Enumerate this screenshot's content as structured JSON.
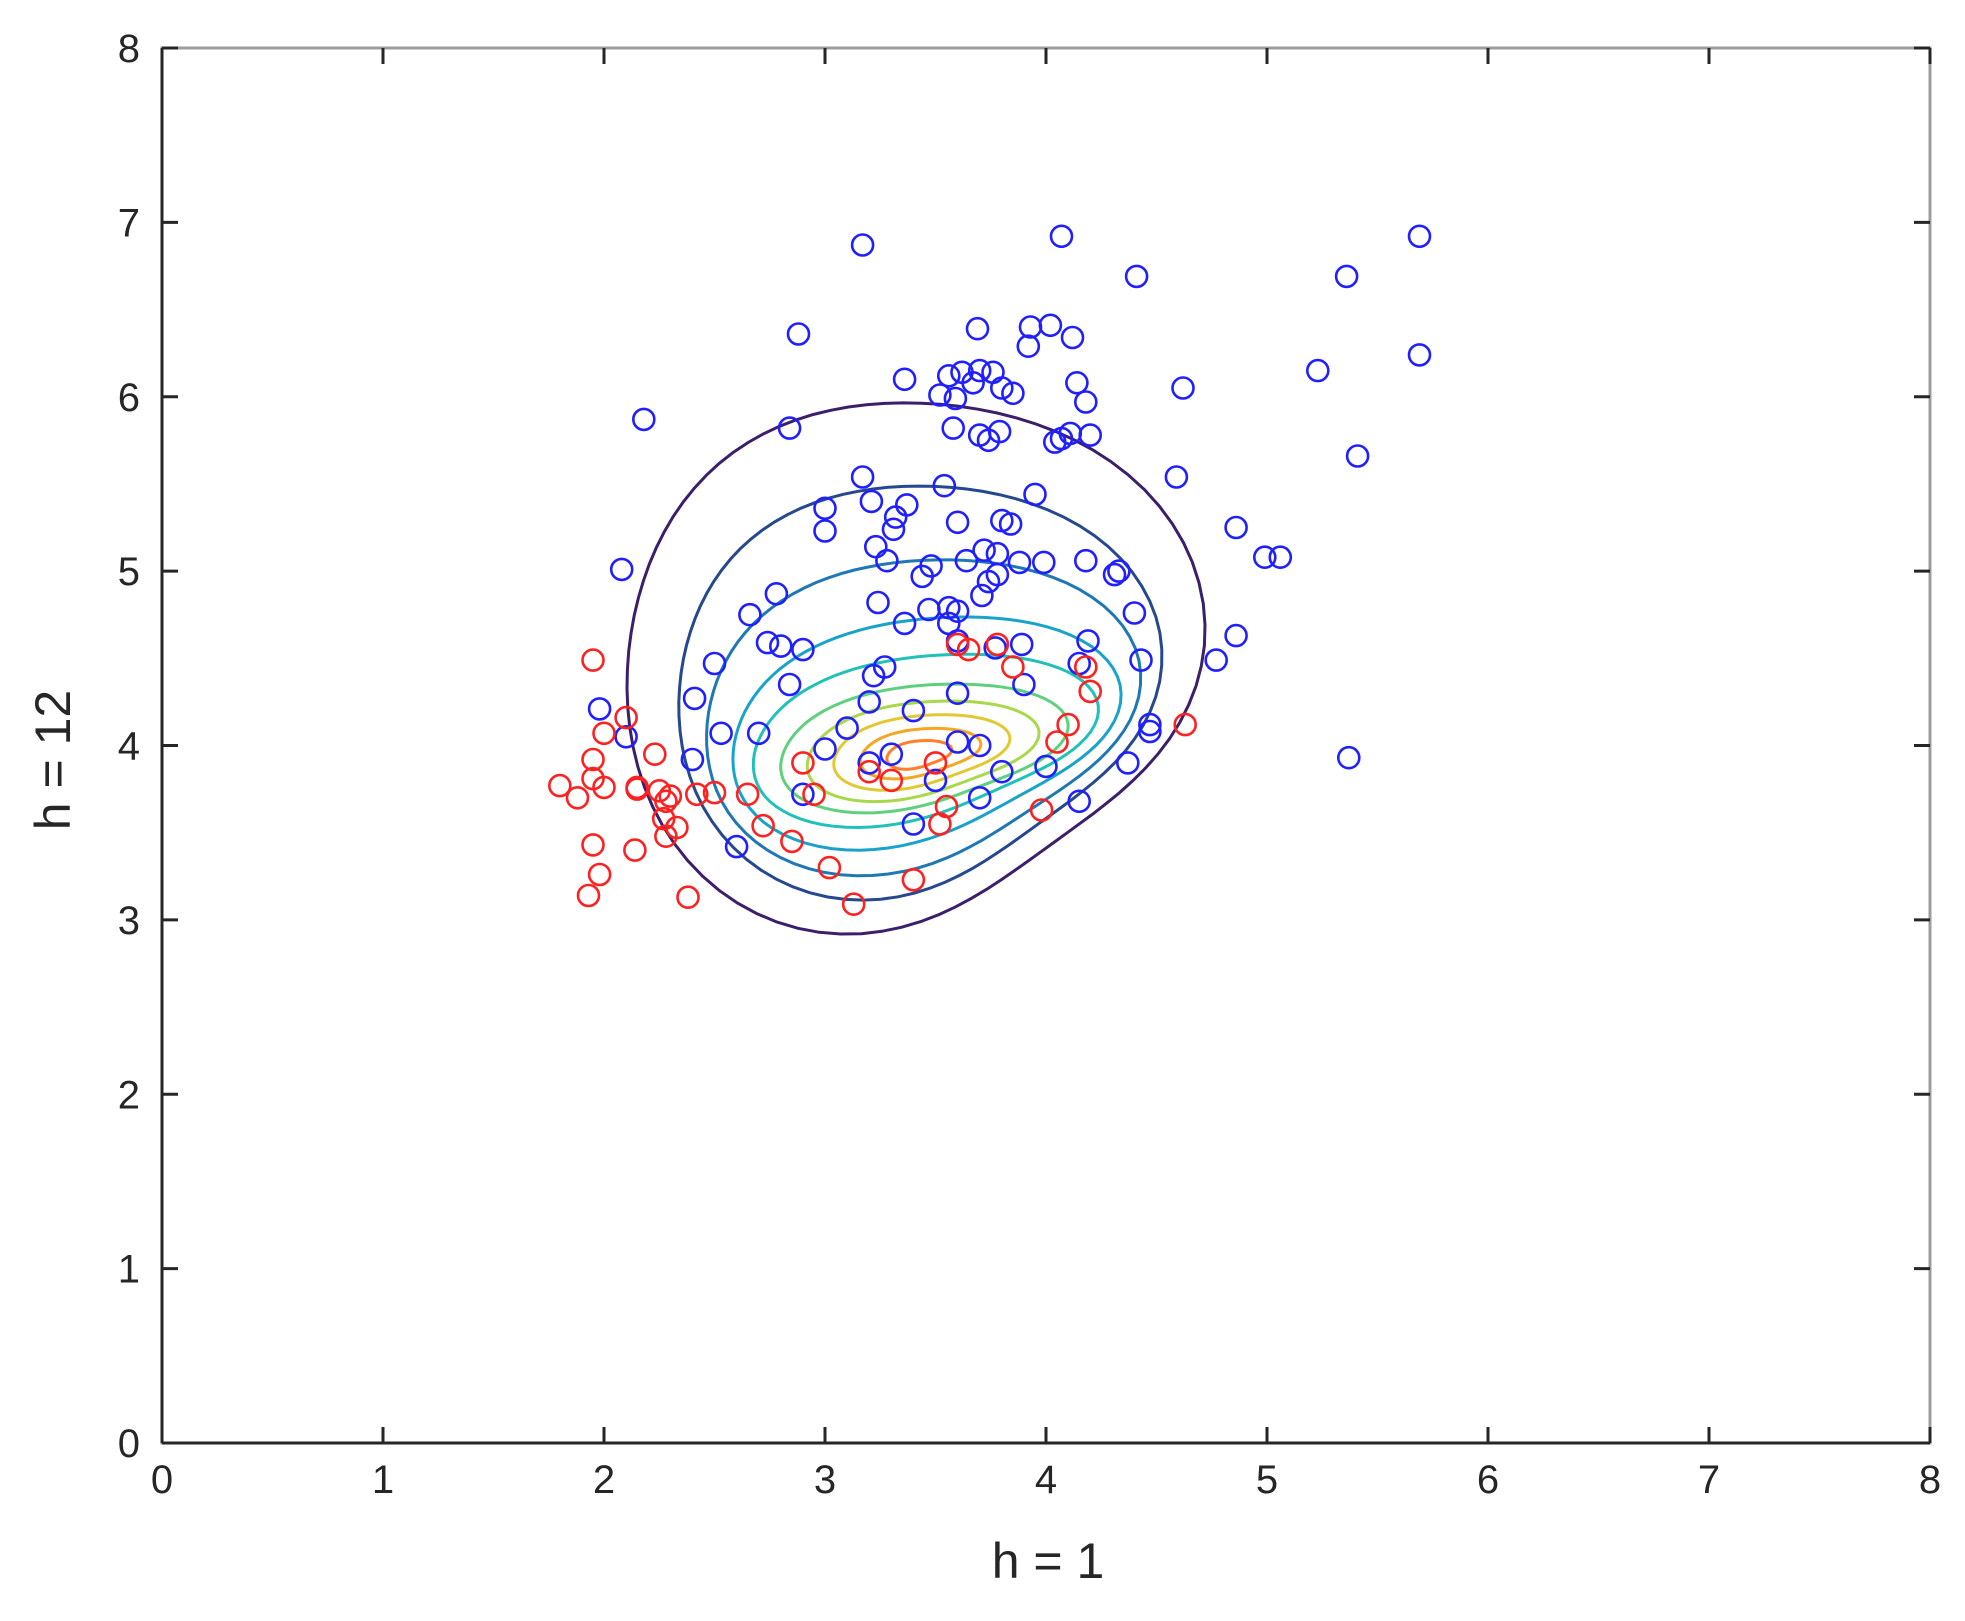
{
  "chart_data": {
    "type": "scatter",
    "xlabel": "h = 1",
    "ylabel": "h = 12",
    "xlim": [
      0,
      8
    ],
    "ylim": [
      0,
      8
    ],
    "xticks": [
      "0",
      "1",
      "2",
      "3",
      "4",
      "5",
      "6",
      "7",
      "8"
    ],
    "yticks": [
      "0",
      "1",
      "2",
      "3",
      "4",
      "5",
      "6",
      "7",
      "8"
    ],
    "grid": false,
    "colors": {
      "group_a": "#1f1fff",
      "group_b": "#ff2020",
      "axes": "#262626",
      "frame": "#9c9c9c"
    },
    "contour_colormap": [
      "#3b1f6b",
      "#25488e",
      "#1f78b4",
      "#1aa3c8",
      "#21c1b9",
      "#5fd07e",
      "#a9d84a",
      "#e2c832",
      "#f5a623",
      "#ff7f2a"
    ],
    "contour_center": [
      3.4,
      3.95
    ],
    "series": [
      {
        "marker": "circle-open",
        "color": "#1f1fff",
        "x": [
          3.17,
          4.07,
          5.69,
          4.41,
          5.36,
          2.88,
          3.69,
          3.93,
          4.02,
          3.92,
          4.12,
          5.69,
          3.36,
          3.62,
          3.7,
          3.76,
          3.52,
          3.56,
          3.67,
          3.8,
          3.85,
          5.23,
          4.62,
          3.58,
          4.14,
          3.59,
          4.18,
          4.04,
          2.18,
          2.84,
          3.7,
          3.79,
          3.74,
          4.11,
          3.54,
          4.07,
          4.2,
          5.41,
          3.17,
          4.59,
          3.21,
          3.6,
          3.95,
          3.32,
          3.37,
          3.0,
          3.8,
          3.23,
          3.84,
          3.31,
          4.86,
          3.0,
          3.48,
          3.28,
          3.72,
          3.78,
          4.99,
          5.06,
          3.64,
          3.88,
          3.44,
          2.08,
          3.99,
          4.18,
          4.33,
          4.31,
          3.78,
          3.74,
          3.71,
          2.78,
          3.24,
          3.56,
          3.47,
          2.66,
          4.4,
          3.6,
          3.36,
          3.56,
          2.74,
          2.8,
          2.9,
          3.89,
          4.86,
          4.77,
          3.77,
          4.19,
          4.15,
          4.43,
          2.5,
          3.6,
          3.22,
          2.84,
          3.27,
          2.41,
          1.98,
          2.1,
          4.47,
          4.47,
          2.53,
          2.7,
          4.37,
          5.37,
          3.4,
          3.2,
          3.6,
          3.9,
          2.4,
          3.1,
          3.0,
          3.7,
          2.6,
          2.9,
          3.5,
          3.8,
          3.3,
          4.0,
          3.7,
          3.2,
          3.4,
          3.6,
          4.15
        ],
        "y": [
          6.87,
          6.92,
          6.92,
          6.69,
          6.69,
          6.36,
          6.39,
          6.4,
          6.41,
          6.29,
          6.34,
          6.24,
          6.1,
          6.14,
          6.15,
          6.14,
          6.01,
          6.12,
          6.08,
          6.05,
          6.02,
          6.15,
          6.05,
          5.82,
          6.08,
          5.99,
          5.97,
          5.74,
          5.87,
          5.82,
          5.78,
          5.8,
          5.75,
          5.79,
          5.49,
          5.76,
          5.78,
          5.66,
          5.54,
          5.54,
          5.4,
          5.28,
          5.44,
          5.31,
          5.38,
          5.36,
          5.29,
          5.14,
          5.27,
          5.24,
          5.25,
          5.23,
          5.03,
          5.06,
          5.12,
          5.1,
          5.08,
          5.08,
          5.06,
          5.05,
          4.97,
          5.01,
          5.05,
          5.06,
          5.0,
          4.98,
          4.98,
          4.94,
          4.86,
          4.87,
          4.82,
          4.79,
          4.78,
          4.75,
          4.76,
          4.77,
          4.7,
          4.7,
          4.59,
          4.57,
          4.55,
          4.58,
          4.63,
          4.49,
          4.56,
          4.6,
          4.47,
          4.49,
          4.47,
          4.6,
          4.4,
          4.35,
          4.45,
          4.27,
          4.21,
          4.05,
          4.12,
          4.08,
          4.07,
          4.07,
          3.9,
          3.93,
          4.2,
          4.25,
          4.3,
          4.35,
          3.92,
          4.1,
          3.98,
          4.0,
          3.42,
          3.72,
          3.8,
          3.85,
          3.95,
          3.88,
          3.7,
          3.9,
          3.55,
          4.02,
          3.68
        ]
      },
      {
        "marker": "circle-open",
        "color": "#ff2020",
        "x": [
          1.95,
          2.1,
          2.0,
          1.95,
          2.23,
          2.15,
          1.88,
          1.8,
          1.95,
          2.0,
          2.15,
          2.3,
          2.28,
          2.27,
          2.33,
          2.42,
          2.28,
          2.5,
          1.95,
          2.14,
          2.25,
          1.98,
          1.93,
          2.38,
          3.02,
          3.13,
          3.4,
          3.98,
          4.63,
          4.2,
          4.1,
          3.52,
          2.85,
          2.72,
          2.65,
          2.9,
          3.6,
          3.65,
          3.78,
          3.85,
          4.18,
          4.05,
          3.55,
          3.2,
          3.3,
          3.5,
          2.95
        ],
        "y": [
          4.49,
          4.16,
          4.07,
          3.92,
          3.95,
          3.76,
          3.7,
          3.77,
          3.81,
          3.76,
          3.75,
          3.71,
          3.68,
          3.58,
          3.53,
          3.72,
          3.48,
          3.73,
          3.43,
          3.4,
          3.74,
          3.26,
          3.14,
          3.13,
          3.3,
          3.09,
          3.23,
          3.63,
          4.12,
          4.31,
          4.12,
          3.55,
          3.45,
          3.54,
          3.72,
          3.9,
          4.58,
          4.55,
          4.58,
          4.45,
          4.45,
          4.02,
          3.65,
          3.85,
          3.8,
          3.9,
          3.72
        ]
      }
    ]
  }
}
